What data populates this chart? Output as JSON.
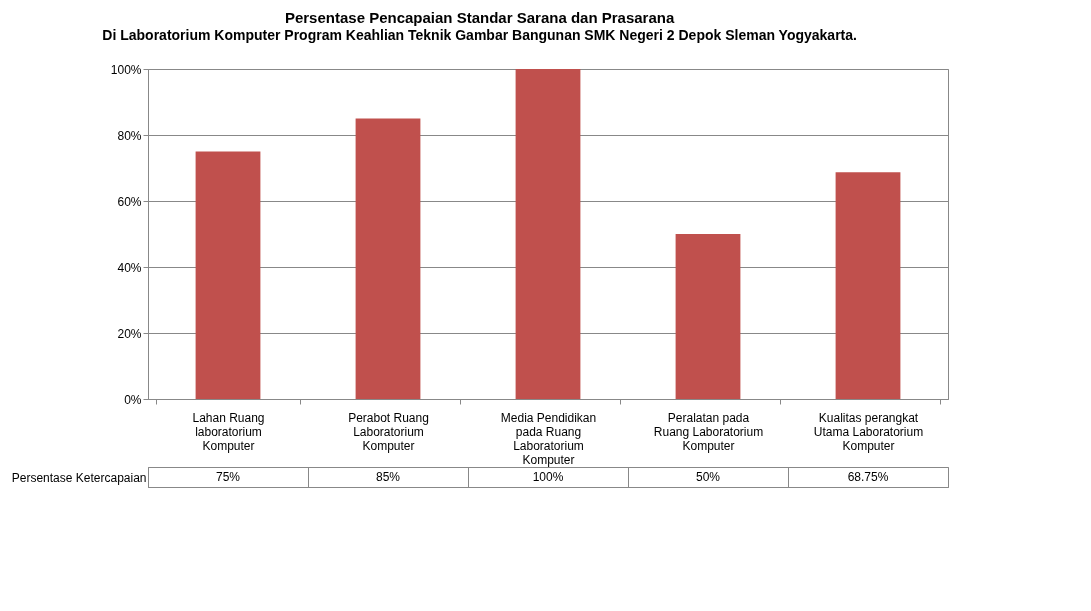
{
  "chart_data": {
    "type": "bar",
    "title": "Persentase Pencapaian Standar Sarana dan Prasarana",
    "subtitle": "Di Laboratorium Komputer Program Keahlian Teknik Gambar Bangunan SMK Negeri 2 Depok Sleman Yogyakarta.",
    "categories": [
      "Lahan Ruang laboratorium Komputer",
      "Perabot Ruang Laboratorium Komputer",
      "Media Pendidikan pada Ruang Laboratorium Komputer",
      "Peralatan pada Ruang Laboratorium Komputer",
      "Kualitas perangkat Utama Laboratorium Komputer"
    ],
    "series": [
      {
        "name": "Persentase Ketercapaian",
        "color": "#c0504d",
        "values": [
          75,
          85,
          100,
          50,
          68.75
        ],
        "value_labels": [
          "75%",
          "85%",
          "100%",
          "50%",
          "68.75%"
        ]
      }
    ],
    "ylim": [
      0,
      100
    ],
    "yticks": [
      {
        "value": 0,
        "label": "0%"
      },
      {
        "value": 20,
        "label": "20%"
      },
      {
        "value": 40,
        "label": "40%"
      },
      {
        "value": 60,
        "label": "60%"
      },
      {
        "value": 80,
        "label": "80%"
      },
      {
        "value": 100,
        "label": "100%"
      }
    ],
    "grid": "y",
    "legend": false
  }
}
